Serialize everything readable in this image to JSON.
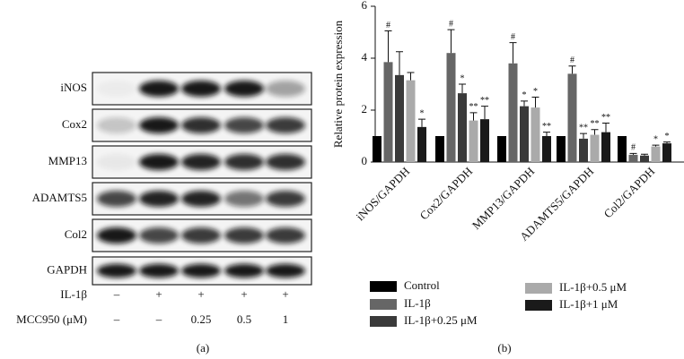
{
  "blot": {
    "panel_label": "(a)",
    "proteins": [
      "iNOS",
      "Cox2",
      "MMP13",
      "ADAMTS5",
      "Col2",
      "GAPDH"
    ],
    "treatments": [
      {
        "name": "IL-1β",
        "lanes": [
          "–",
          "+",
          "+",
          "+",
          "+"
        ]
      },
      {
        "name": "MCC950 (μM)",
        "lanes": [
          "–",
          "–",
          "0.25",
          "0.5",
          "1"
        ]
      }
    ]
  },
  "chart_data": {
    "type": "bar",
    "panel_label": "(b)",
    "y_label": "Relative protein expression",
    "categories": [
      "iNOS/GAPDH",
      "Cox2/GAPDH",
      "MMP13/GAPDH",
      "ADAMTS5/GAPDH",
      "Col2/GAPDH"
    ],
    "ylim": [
      0,
      6
    ],
    "yticks": [
      0,
      2,
      4,
      6
    ],
    "series": [
      {
        "name": "Control",
        "color": "#000000",
        "values": [
          1,
          1,
          1,
          1,
          1
        ]
      },
      {
        "name": "IL-1β",
        "color": "#666666",
        "values": [
          3.85,
          4.2,
          3.8,
          3.4,
          0.28
        ],
        "errors": [
          1.2,
          0.9,
          0.8,
          0.3,
          0.05
        ],
        "annotations": [
          "#",
          "#",
          "#",
          "#",
          "#"
        ]
      },
      {
        "name": "IL-1β+0.25 μM",
        "color": "#3a3a3a",
        "values": [
          3.35,
          2.65,
          2.15,
          0.9,
          0.25
        ],
        "errors": [
          0.9,
          0.35,
          0.2,
          0.2,
          0.05
        ],
        "annotations": [
          null,
          "*",
          "*",
          "**",
          null
        ]
      },
      {
        "name": "IL-1β+0.5 μM",
        "color": "#aaaaaa",
        "values": [
          3.15,
          1.6,
          2.1,
          1.05,
          0.6
        ],
        "errors": [
          0.3,
          0.3,
          0.4,
          0.2,
          0.05
        ],
        "annotations": [
          null,
          "**",
          "*",
          "**",
          "*"
        ]
      },
      {
        "name": "IL-1β+1 μM",
        "color": "#1a1a1a",
        "values": [
          1.35,
          1.65,
          1.0,
          1.15,
          0.72
        ],
        "errors": [
          0.3,
          0.5,
          0.15,
          0.35,
          0.05
        ],
        "annotations": [
          "*",
          "**",
          "**",
          "**",
          "*"
        ]
      }
    ]
  }
}
